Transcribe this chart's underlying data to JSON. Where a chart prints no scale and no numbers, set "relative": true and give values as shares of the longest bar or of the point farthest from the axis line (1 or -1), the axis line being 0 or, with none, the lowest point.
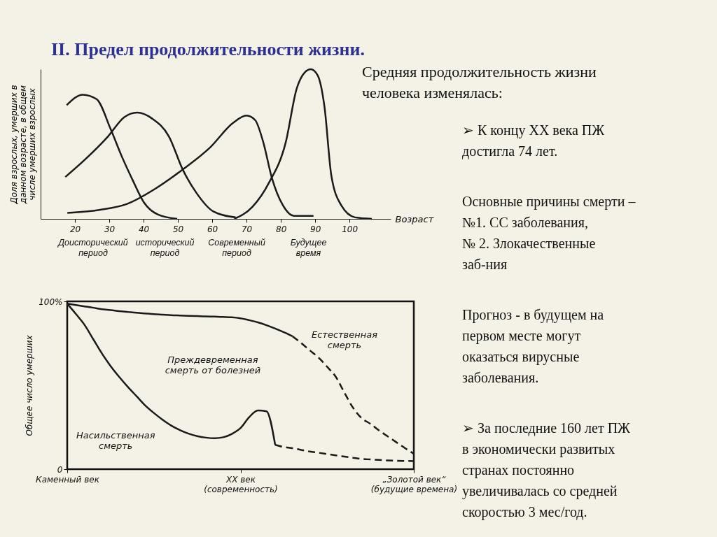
{
  "chart_data": [
    {
      "type": "line",
      "title": "II. Предел продолжительности жизни.",
      "xlabel": "Возраст",
      "ylabel": "Доля взрослых, умерших в данном возрасте, в общем числе умерших взрослых",
      "relative": true,
      "xlim": [
        10,
        112
      ],
      "xticks": [
        20,
        30,
        40,
        50,
        60,
        70,
        80,
        90,
        100
      ],
      "annotations": [
        "Доисторический период",
        "исторический период",
        "Современный период",
        "Будущее время"
      ],
      "series": [
        {
          "color": "#1a1a1a",
          "x": [
            17.6,
            22.3,
            26.3,
            30.4,
            33.6,
            36.8,
            40.1,
            44.1,
            49.8
          ],
          "values": [
            0.76,
            0.83,
            0.8,
            0.6,
            0.42,
            0.26,
            0.11,
            0.03,
            0
          ]
        },
        {
          "color": "#1a1a1a",
          "x": [
            17.2,
            23.1,
            29.6,
            34.4,
            38.1,
            42.5,
            47.4,
            51.4,
            55.5,
            60.3,
            66.8
          ],
          "values": [
            0.28,
            0.4,
            0.55,
            0.68,
            0.71,
            0.67,
            0.55,
            0.33,
            0.17,
            0.05,
            0.01
          ]
        },
        {
          "color": "#1a1a1a",
          "x": [
            17.8,
            27.1,
            35.2,
            43.3,
            51.4,
            59.5,
            66,
            70,
            72.5,
            74.9,
            77.3,
            80.6,
            83.8,
            89.5
          ],
          "values": [
            0.04,
            0.06,
            0.1,
            0.2,
            0.33,
            0.48,
            0.64,
            0.69,
            0.66,
            0.51,
            0.28,
            0.09,
            0.02,
            0.02
          ]
        },
        {
          "color": "#1a1a1a",
          "x": [
            66.4,
            71.7,
            76.5,
            81.4,
            84.6,
            87,
            88.7,
            90.7,
            92.7,
            94.7,
            97.6,
            101.6,
            106.5
          ],
          "values": [
            0,
            0.08,
            0.24,
            0.51,
            0.87,
            0.98,
            1,
            0.96,
            0.75,
            0.29,
            0.09,
            0.01,
            0
          ]
        }
      ]
    },
    {
      "type": "line",
      "ylabel": "Общее число умерших",
      "ylim": [
        0,
        100
      ],
      "yticks": [
        0,
        {
          "value": 100,
          "label": "100%"
        }
      ],
      "categories": [
        "Каменный век",
        null,
        null,
        null,
        null,
        null,
        null,
        null,
        null,
        null,
        null,
        null,
        null,
        null,
        null,
        null,
        null,
        null,
        null,
        null,
        "XX век (современность)",
        null,
        null,
        null,
        null,
        null,
        null,
        null,
        null,
        null,
        null,
        null,
        null,
        null,
        null,
        null,
        null,
        null,
        null,
        null,
        "„Золотой век“ (будущие времена)"
      ],
      "annotations": [
        "Естественная смерть",
        "Преждевременная смерть от болезней",
        "Насильственная смерть"
      ],
      "series": [
        {
          "color": "#1a1a1a",
          "line_style": "solid",
          "values": [
            98.6,
            97.8,
            97,
            96.2,
            95.3,
            94.8,
            94.2,
            93.7,
            93.2,
            92.8,
            92.4,
            92.1,
            91.8,
            91.6,
            91.4,
            91.2,
            91,
            90.9,
            90.7,
            90.5,
            89.9,
            88.8,
            87.5,
            85.8,
            83.8,
            81.6,
            79.2,
            null,
            null,
            null,
            null,
            null,
            null,
            null,
            null,
            null,
            null,
            null,
            null,
            null,
            null
          ]
        },
        {
          "color": "#1a1a1a",
          "line_style": "dashed",
          "values": [
            null,
            null,
            null,
            null,
            null,
            null,
            null,
            null,
            null,
            null,
            null,
            null,
            null,
            null,
            null,
            null,
            null,
            null,
            null,
            null,
            null,
            null,
            null,
            null,
            null,
            null,
            79.2,
            75.2,
            70.8,
            66.5,
            61,
            55,
            45.5,
            36.5,
            30.3,
            27,
            23,
            19.5,
            16,
            12.5,
            9.2
          ]
        },
        {
          "color": "#1a1a1a",
          "line_style": "solid",
          "values": [
            98.6,
            92.5,
            86,
            77.5,
            69,
            61.5,
            55,
            49,
            43.5,
            38,
            33.5,
            29.5,
            26,
            23.3,
            21.2,
            19.7,
            18.8,
            18.4,
            19,
            21,
            24.5,
            31,
            35,
            34.5,
            14.5,
            null,
            null,
            null,
            null,
            null,
            null,
            null,
            null,
            null,
            null,
            null,
            null,
            null,
            null,
            null,
            null
          ]
        },
        {
          "color": "#1a1a1a",
          "line_style": "dashed",
          "values": [
            null,
            null,
            null,
            null,
            null,
            null,
            null,
            null,
            null,
            null,
            null,
            null,
            null,
            null,
            null,
            null,
            null,
            null,
            null,
            null,
            null,
            null,
            null,
            null,
            14.5,
            13.2,
            12.5,
            11.5,
            10.5,
            9.8,
            9,
            8.2,
            7.5,
            6.8,
            6.1,
            5.8,
            5.5,
            5.2,
            5,
            4.9,
            4.8
          ]
        }
      ]
    },
    {
      "type": "other",
      "title": "Средняя продолжительность жизни человека изменялась:",
      "annotations": [
        "➢ К концу XX века ПЖ достигла 74 лет.",
        "Основные причины смерти –\n№1.  СС заболевания,\n№ 2. Злокачественные заб-ния",
        "Прогноз - в будущем на первом месте могут оказаться вирусные заболевания.",
        "➢ За последние 160 лет ПЖ в экономически развитых странах постоянно увеличивалась со средней скоростью 3 мес/год."
      ]
    }
  ]
}
